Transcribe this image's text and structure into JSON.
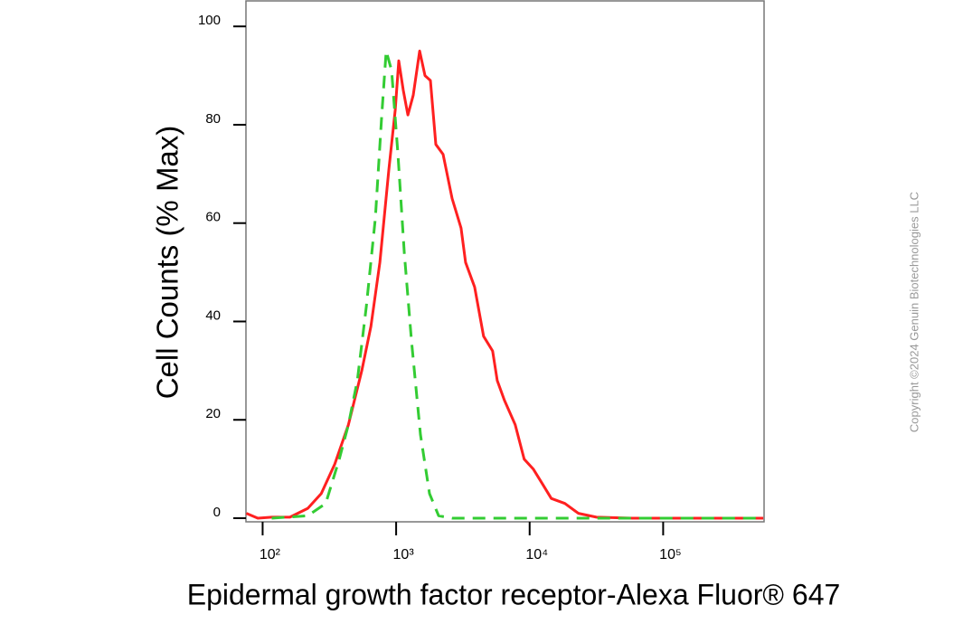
{
  "chart_data": {
    "type": "line",
    "x_label": "Epidermal growth factor receptor-Alexa Fluor® 647",
    "y_label": "Cell Counts (% Max)",
    "copyright": "Copyright ©2024 Genuin Biotechnologies LLC",
    "xscale": "log",
    "grid": false,
    "xlim": [
      75,
      570000
    ],
    "ylim": [
      0,
      105
    ],
    "xticks": [
      {
        "value": 100,
        "label": "10²"
      },
      {
        "value": 1000,
        "label": "10³"
      },
      {
        "value": 10000,
        "label": "10⁴"
      },
      {
        "value": 100000,
        "label": "10⁵"
      }
    ],
    "yticks": [
      0,
      20,
      40,
      60,
      80,
      100
    ],
    "series": [
      {
        "color": "#ff2020",
        "dashed": false,
        "x": [
          75.5,
          92,
          117,
          160,
          218,
          275,
          347,
          439,
          553,
          647,
          755,
          883,
          984,
          1047,
          1132,
          1224,
          1343,
          1499,
          1644,
          1806,
          1983,
          2245,
          2624,
          3062,
          3311,
          3873,
          4519,
          5284,
          5714,
          6471,
          7798,
          9104,
          10640,
          12450,
          14520,
          18360,
          23170,
          31620,
          58880,
          562000
        ],
        "values": [
          1,
          0,
          0.2,
          0.2,
          2,
          5,
          11,
          19,
          30,
          39,
          52,
          71,
          83,
          93,
          87,
          82,
          86,
          95,
          90,
          89,
          76,
          74,
          65,
          59,
          52,
          47,
          37,
          34,
          28,
          24,
          19,
          12,
          10,
          7,
          4,
          3,
          1,
          0.2,
          0,
          0
        ]
      },
      {
        "color": "#33cc33",
        "dashed": true,
        "x": [
          117,
          218,
          297,
          375,
          439,
          512,
          598,
          699,
          780,
          843,
          925,
          1032,
          1151,
          1304,
          1521,
          1778,
          2080,
          2624,
          562000
        ],
        "values": [
          0,
          0.5,
          3,
          12,
          19,
          28,
          43,
          61,
          82,
          95,
          91,
          74,
          54,
          36,
          17,
          5,
          0.5,
          0,
          0
        ]
      }
    ]
  }
}
